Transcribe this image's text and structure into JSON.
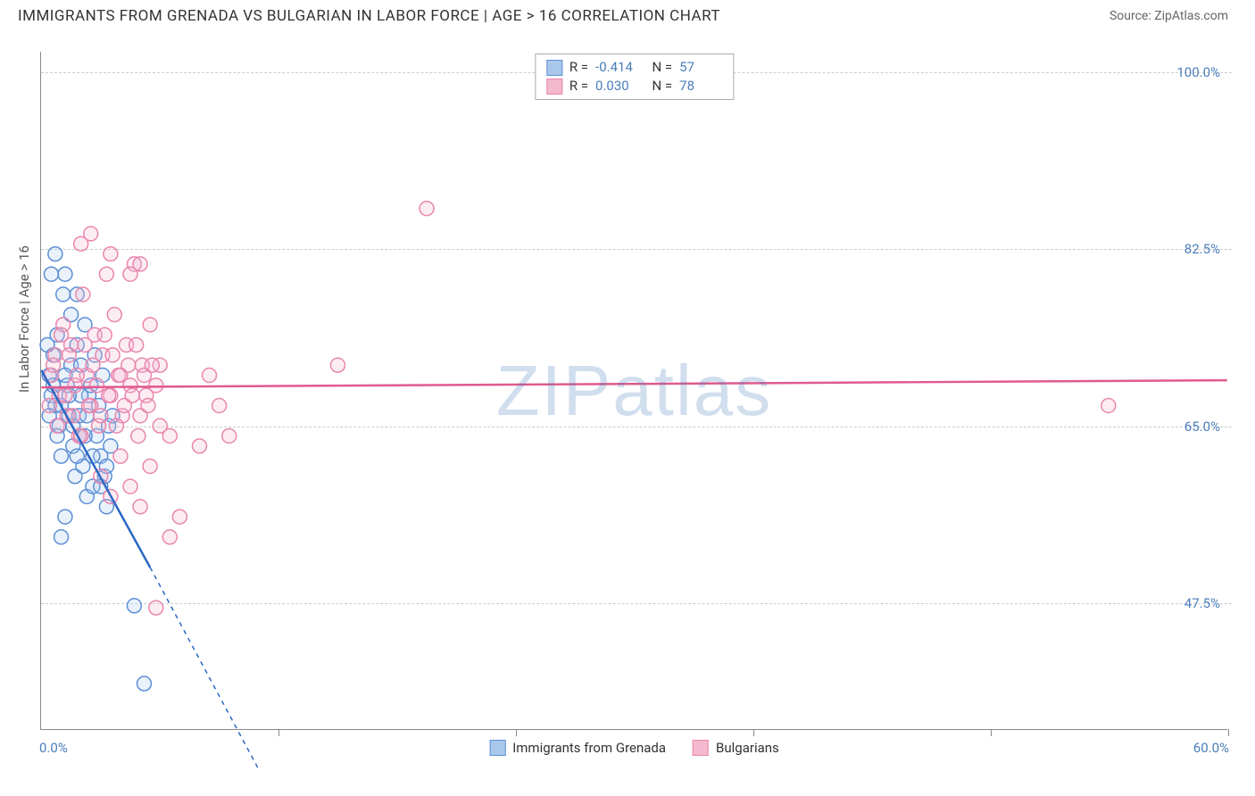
{
  "header": {
    "title": "IMMIGRANTS FROM GRENADA VS BULGARIAN IN LABOR FORCE | AGE > 16 CORRELATION CHART",
    "source": "Source: ZipAtlas.com"
  },
  "chart": {
    "type": "scatter",
    "y_axis_label": "In Labor Force | Age > 16",
    "watermark": "ZIPatlas",
    "x_range_label_min": "0.0%",
    "x_range_label_max": "60.0%",
    "background_color": "#ffffff",
    "grid_color": "#cccccc",
    "axis_color": "#888888",
    "tick_label_color": "#4a7ebb",
    "x_domain": [
      0,
      60
    ],
    "y_domain": [
      35,
      102
    ],
    "y_ticks": [
      {
        "v": 47.5,
        "label": "47.5%"
      },
      {
        "v": 65.0,
        "label": "65.0%"
      },
      {
        "v": 82.5,
        "label": "82.5%"
      },
      {
        "v": 100.0,
        "label": "100.0%"
      }
    ],
    "x_ticks_minor": [
      12,
      24,
      36,
      48,
      60
    ],
    "marker_radius": 8,
    "marker_stroke_width": 1.5,
    "marker_fill_opacity": 0.25,
    "trend_line_width": 2.5,
    "trend_dash": "5,5",
    "series": [
      {
        "id": "grenada",
        "label": "Immigrants from Grenada",
        "color_fill": "#a9c7ea",
        "color_stroke": "#5b8fd6",
        "line_color": "#2b68c4",
        "R": "-0.414",
        "N": "57",
        "trend": {
          "x0": 0,
          "y0": 70.5,
          "x1_solid": 5.5,
          "y1_solid": 51.0,
          "x1_dash": 11.0,
          "y1_dash": 31.0
        },
        "points": [
          [
            0.4,
            70
          ],
          [
            0.5,
            68
          ],
          [
            0.6,
            72
          ],
          [
            0.7,
            67
          ],
          [
            0.8,
            74
          ],
          [
            0.9,
            65
          ],
          [
            1.0,
            62
          ],
          [
            1.1,
            78
          ],
          [
            1.2,
            80
          ],
          [
            1.3,
            69
          ],
          [
            1.4,
            66
          ],
          [
            1.5,
            71
          ],
          [
            1.6,
            63
          ],
          [
            1.7,
            60
          ],
          [
            1.8,
            73
          ],
          [
            1.9,
            66
          ],
          [
            2.0,
            64
          ],
          [
            2.1,
            61
          ],
          [
            2.2,
            75
          ],
          [
            2.3,
            58
          ],
          [
            2.4,
            68
          ],
          [
            2.5,
            69
          ],
          [
            2.6,
            59
          ],
          [
            2.7,
            72
          ],
          [
            2.8,
            64
          ],
          [
            2.9,
            67
          ],
          [
            3.0,
            62
          ],
          [
            3.1,
            70
          ],
          [
            3.2,
            60
          ],
          [
            3.3,
            61
          ],
          [
            3.4,
            65
          ],
          [
            3.5,
            63
          ],
          [
            3.6,
            66
          ],
          [
            0.5,
            80
          ],
          [
            0.7,
            82
          ],
          [
            4.7,
            47.2
          ],
          [
            1.0,
            54
          ],
          [
            1.2,
            56
          ],
          [
            5.2,
            39.5
          ],
          [
            1.5,
            76
          ],
          [
            1.8,
            78
          ],
          [
            2.0,
            68
          ],
          [
            2.3,
            66
          ],
          [
            2.6,
            62
          ],
          [
            3.0,
            59
          ],
          [
            3.3,
            57
          ],
          [
            0.3,
            73
          ],
          [
            0.4,
            66
          ],
          [
            0.6,
            69
          ],
          [
            0.8,
            64
          ],
          [
            1.0,
            67
          ],
          [
            1.2,
            70
          ],
          [
            1.4,
            68
          ],
          [
            1.6,
            65
          ],
          [
            1.8,
            62
          ],
          [
            2.0,
            71
          ],
          [
            2.2,
            64
          ]
        ]
      },
      {
        "id": "bulgarians",
        "label": "Bulgarians",
        "color_fill": "#f4b9ce",
        "color_stroke": "#e986ad",
        "line_color": "#e05a8f",
        "R": "0.030",
        "N": "78",
        "trend": {
          "x0": 0,
          "y0": 68.8,
          "x1_solid": 60,
          "y1_solid": 69.5,
          "x1_dash": 60,
          "y1_dash": 69.5
        },
        "points": [
          [
            0.5,
            70
          ],
          [
            0.7,
            72
          ],
          [
            0.9,
            68
          ],
          [
            1.1,
            75
          ],
          [
            1.3,
            66
          ],
          [
            1.5,
            73
          ],
          [
            1.7,
            69
          ],
          [
            1.9,
            64
          ],
          [
            2.1,
            78
          ],
          [
            2.3,
            70
          ],
          [
            2.5,
            67
          ],
          [
            2.7,
            74
          ],
          [
            2.9,
            65
          ],
          [
            3.1,
            72
          ],
          [
            3.3,
            80
          ],
          [
            3.5,
            68
          ],
          [
            3.7,
            76
          ],
          [
            3.9,
            70
          ],
          [
            4.1,
            66
          ],
          [
            4.3,
            73
          ],
          [
            4.5,
            69
          ],
          [
            4.7,
            81
          ],
          [
            4.9,
            64
          ],
          [
            5.1,
            71
          ],
          [
            5.3,
            68
          ],
          [
            5.5,
            75
          ],
          [
            2.0,
            83
          ],
          [
            2.5,
            84
          ],
          [
            3.5,
            82
          ],
          [
            4.5,
            80
          ],
          [
            5.0,
            81
          ],
          [
            6.0,
            71
          ],
          [
            6.5,
            64
          ],
          [
            7.0,
            56
          ],
          [
            6.5,
            54
          ],
          [
            8.0,
            63
          ],
          [
            8.5,
            70
          ],
          [
            9.0,
            67
          ],
          [
            9.5,
            64
          ],
          [
            15.0,
            71
          ],
          [
            19.5,
            86.5
          ],
          [
            54.0,
            67
          ],
          [
            5.8,
            47
          ],
          [
            3.0,
            60
          ],
          [
            3.5,
            58
          ],
          [
            4.0,
            62
          ],
          [
            4.5,
            59
          ],
          [
            5.0,
            57
          ],
          [
            5.5,
            61
          ],
          [
            0.4,
            67
          ],
          [
            0.6,
            71
          ],
          [
            0.8,
            65
          ],
          [
            1.0,
            74
          ],
          [
            1.2,
            68
          ],
          [
            1.4,
            72
          ],
          [
            1.6,
            66
          ],
          [
            1.8,
            70
          ],
          [
            2.0,
            64
          ],
          [
            2.2,
            73
          ],
          [
            2.4,
            67
          ],
          [
            2.6,
            71
          ],
          [
            2.8,
            69
          ],
          [
            3.0,
            66
          ],
          [
            3.2,
            74
          ],
          [
            3.4,
            68
          ],
          [
            3.6,
            72
          ],
          [
            3.8,
            65
          ],
          [
            4.0,
            70
          ],
          [
            4.2,
            67
          ],
          [
            4.4,
            71
          ],
          [
            4.6,
            68
          ],
          [
            4.8,
            73
          ],
          [
            5.0,
            66
          ],
          [
            5.2,
            70
          ],
          [
            5.4,
            67
          ],
          [
            5.6,
            71
          ],
          [
            5.8,
            69
          ],
          [
            6.0,
            65
          ]
        ]
      }
    ],
    "bottom_legend": [
      {
        "swatch_fill": "#a9c7ea",
        "swatch_stroke": "#5b8fd6",
        "label": "Immigrants from Grenada"
      },
      {
        "swatch_fill": "#f4b9ce",
        "swatch_stroke": "#e986ad",
        "label": "Bulgarians"
      }
    ]
  }
}
